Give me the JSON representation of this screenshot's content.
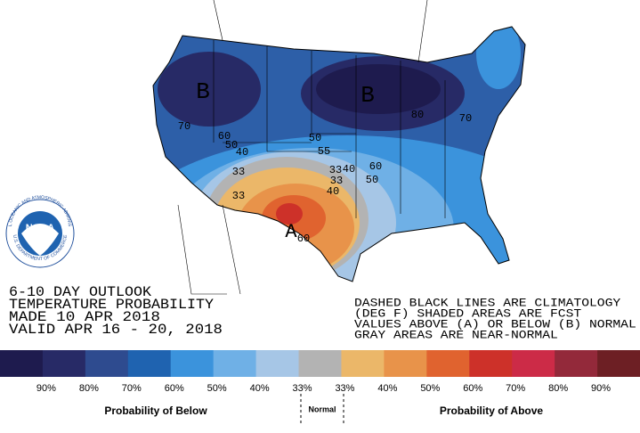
{
  "map_labels": [
    "B",
    "B",
    "A",
    "70",
    "60",
    "50",
    "40",
    "33",
    "33",
    "33",
    "40",
    "40",
    "33",
    "60",
    "50",
    "80",
    "70",
    "60",
    "50",
    "55"
  ],
  "logo": {
    "name": "NOAA",
    "ring_top": "NATIONAL OCEANIC AND ATMOSPHERIC ADMINISTRATION",
    "ring_bottom": "U.S. DEPARTMENT OF COMMERCE"
  },
  "outlook": [
    "6-10 DAY OUTLOOK",
    "TEMPERATURE PROBABILITY",
    "MADE  10 APR 2018",
    "VALID  APR 16 - 20, 2018"
  ],
  "notes": [
    "DASHED BLACK LINES ARE CLIMATOLOGY",
    "(DEG F) SHADED AREAS ARE FCST",
    "VALUES ABOVE (A) OR BELOW (B) NORMAL",
    "GRAY AREAS ARE NEAR-NORMAL"
  ],
  "legend": {
    "colors": [
      "#1e1b4e",
      "#272a66",
      "#2e4b8f",
      "#1f63b0",
      "#3b93dc",
      "#6fb0e6",
      "#a6c6e6",
      "#b3b3b3",
      "#ebb769",
      "#e8934a",
      "#e0632f",
      "#cd3129",
      "#cc2b47",
      "#93293a",
      "#6d1f24"
    ],
    "labels": [
      "90%",
      "80%",
      "70%",
      "60%",
      "50%",
      "40%",
      "33%",
      "33%",
      "40%",
      "50%",
      "60%",
      "70%",
      "80%",
      "90%"
    ],
    "below": "Probability of Below",
    "normal": "Normal",
    "above": "Probability of Above"
  }
}
